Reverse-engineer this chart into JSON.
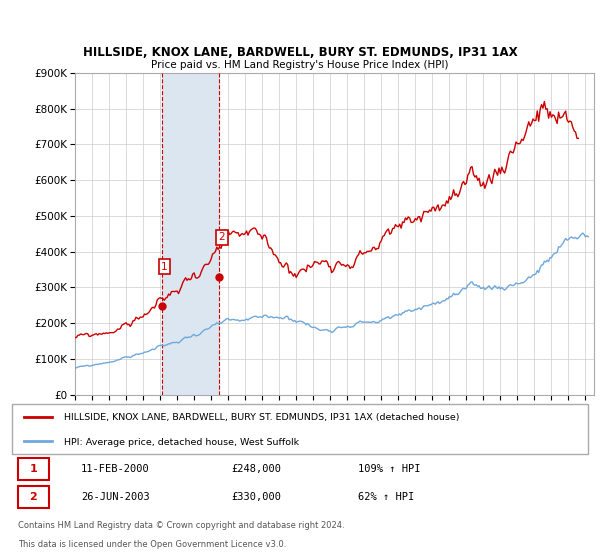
{
  "title": "HILLSIDE, KNOX LANE, BARDWELL, BURY ST. EDMUNDS, IP31 1AX",
  "subtitle": "Price paid vs. HM Land Registry's House Price Index (HPI)",
  "ylim": [
    0,
    900000
  ],
  "yticks": [
    0,
    100000,
    200000,
    300000,
    400000,
    500000,
    600000,
    700000,
    800000,
    900000
  ],
  "xlim_start": 1995.0,
  "xlim_end": 2025.5,
  "sale1_date": 2000.11,
  "sale1_label": "1",
  "sale1_price": 248000,
  "sale1_text": "11-FEB-2000",
  "sale1_pct": "109% ↑ HPI",
  "sale2_date": 2003.49,
  "sale2_label": "2",
  "sale2_price": 330000,
  "sale2_text": "26-JUN-2003",
  "sale2_pct": "62% ↑ HPI",
  "hpi_color": "#6fa8dc",
  "price_color": "#cc0000",
  "shade_color": "#dce6f1",
  "legend_line1": "HILLSIDE, KNOX LANE, BARDWELL, BURY ST. EDMUNDS, IP31 1AX (detached house)",
  "legend_line2": "HPI: Average price, detached house, West Suffolk",
  "footnote1": "Contains HM Land Registry data © Crown copyright and database right 2024.",
  "footnote2": "This data is licensed under the Open Government Licence v3.0."
}
